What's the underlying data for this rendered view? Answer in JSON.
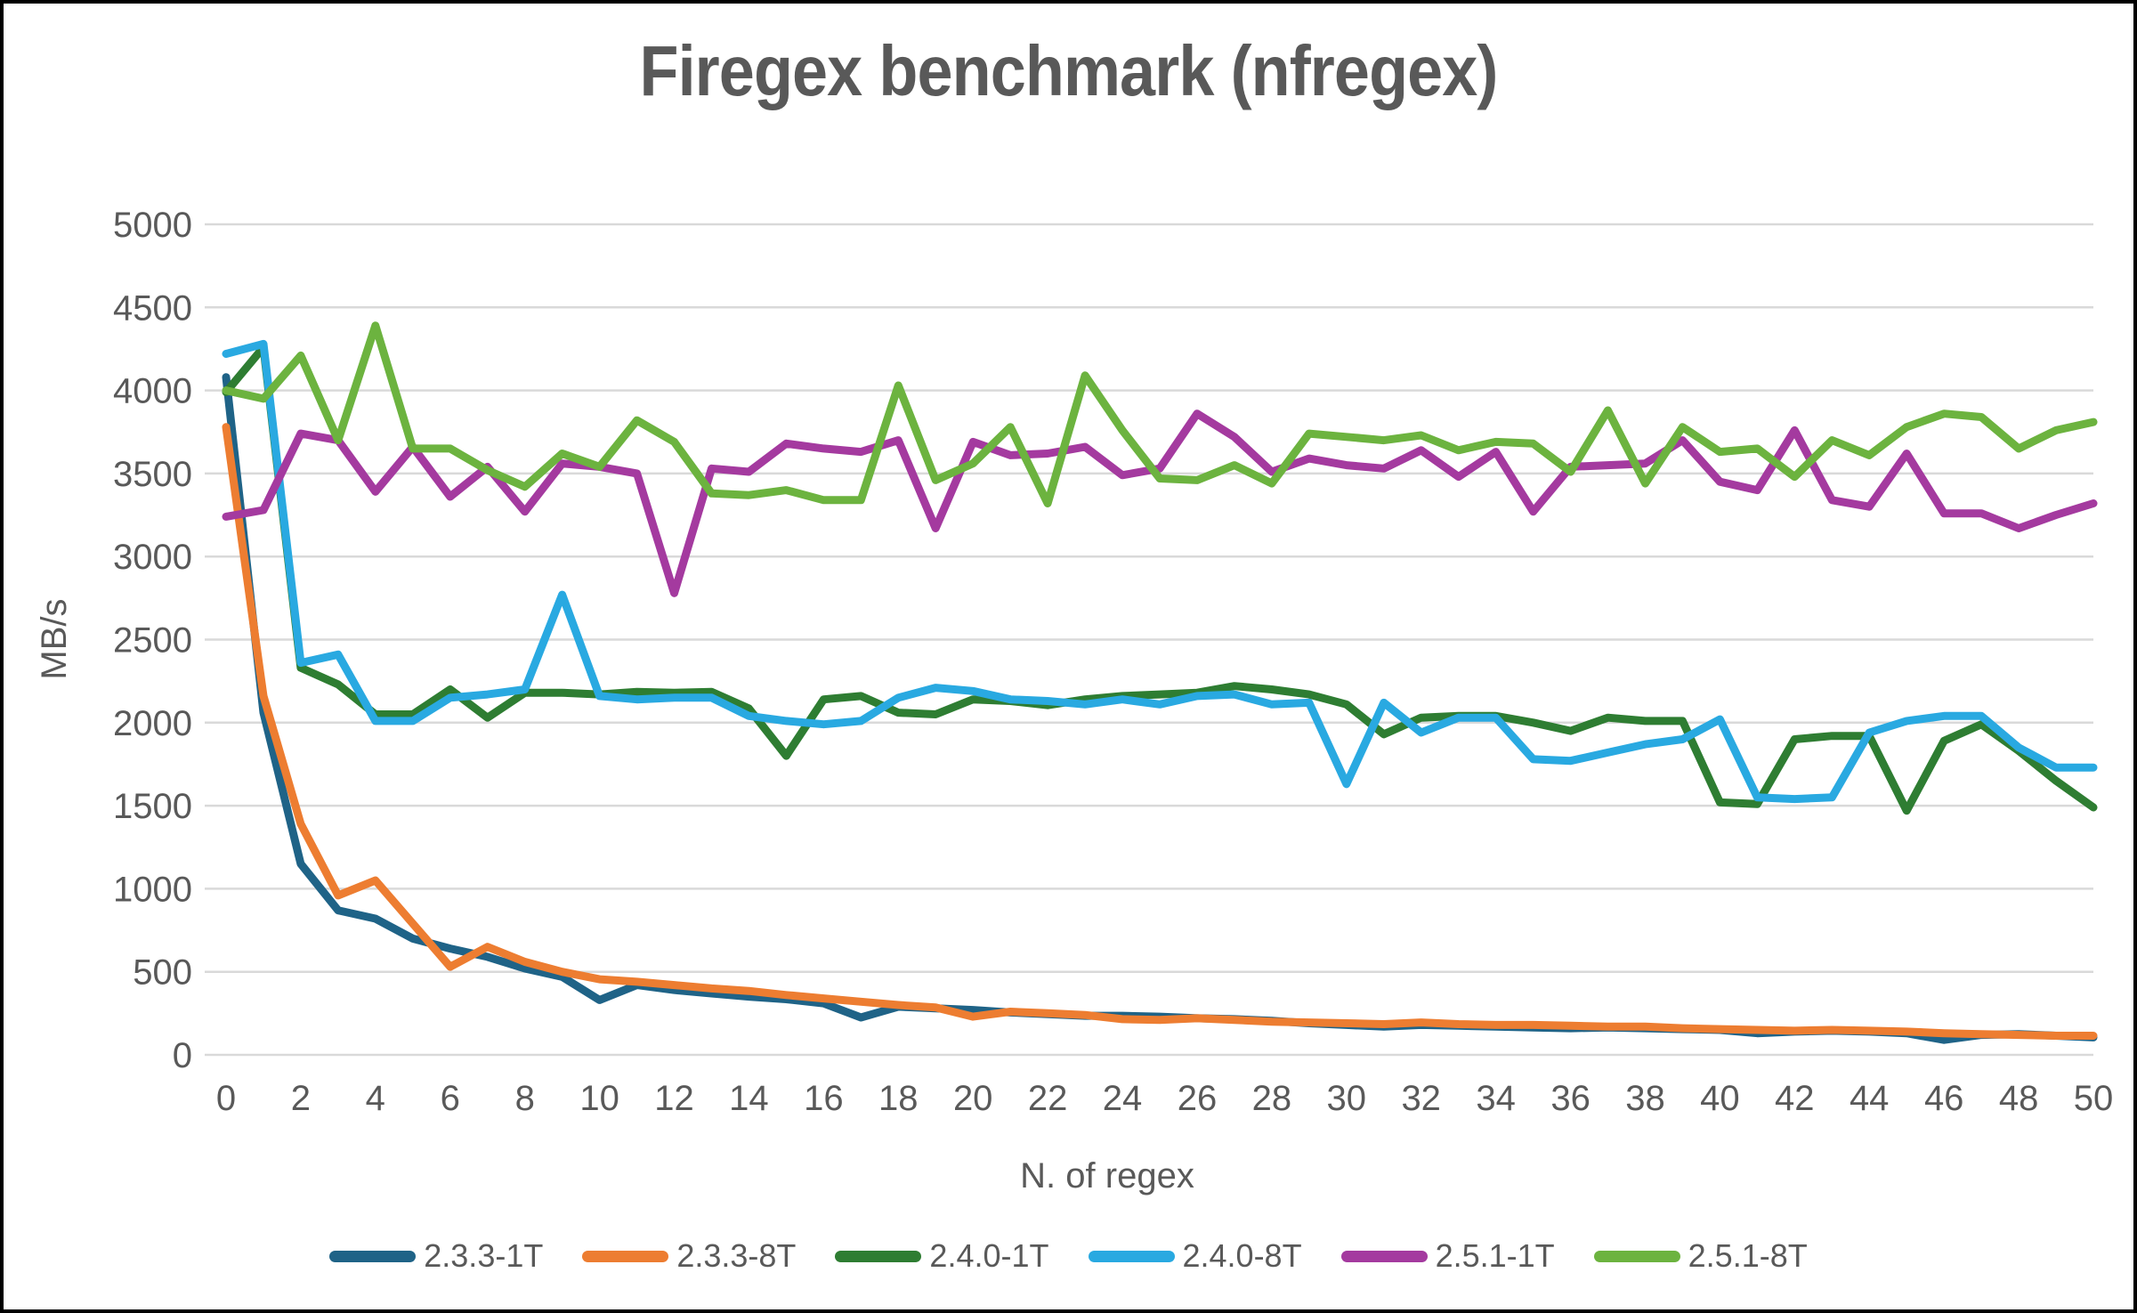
{
  "chart_data": {
    "type": "line",
    "title": "Firegex benchmark (nfregex)",
    "xlabel": "N. of regex",
    "ylabel": "MB/s",
    "xlim": [
      0,
      50
    ],
    "ylim": [
      0,
      5000
    ],
    "x_ticks": [
      0,
      2,
      4,
      6,
      8,
      10,
      12,
      14,
      16,
      18,
      20,
      22,
      24,
      26,
      28,
      30,
      32,
      34,
      36,
      38,
      40,
      42,
      44,
      46,
      48,
      50
    ],
    "y_ticks": [
      0,
      500,
      1000,
      1500,
      2000,
      2500,
      3000,
      3500,
      4000,
      4500,
      5000
    ],
    "grid": true,
    "grid_color": "#d9d9d9",
    "axis_text_color": "#595959",
    "legend_position": "bottom",
    "x": [
      0,
      1,
      2,
      3,
      4,
      5,
      6,
      7,
      8,
      9,
      10,
      11,
      12,
      13,
      14,
      15,
      16,
      17,
      18,
      19,
      20,
      21,
      22,
      23,
      24,
      25,
      26,
      27,
      28,
      29,
      30,
      31,
      32,
      33,
      34,
      35,
      36,
      37,
      38,
      39,
      40,
      41,
      42,
      43,
      44,
      45,
      46,
      47,
      48,
      49,
      50
    ],
    "series": [
      {
        "name": "2.3.3-1T",
        "color": "#1f6387",
        "values": [
          4080,
          2060,
          1150,
          870,
          820,
          700,
          640,
          590,
          520,
          470,
          330,
          420,
          390,
          370,
          350,
          335,
          310,
          225,
          290,
          280,
          270,
          255,
          245,
          235,
          235,
          230,
          220,
          215,
          205,
          190,
          180,
          170,
          180,
          175,
          170,
          165,
          160,
          165,
          160,
          155,
          150,
          130,
          140,
          145,
          140,
          130,
          90,
          120,
          125,
          115,
          105
        ]
      },
      {
        "name": "2.3.3-8T",
        "color": "#ed7d31",
        "values": [
          3780,
          2160,
          1390,
          960,
          1050,
          790,
          530,
          650,
          560,
          500,
          455,
          440,
          420,
          400,
          385,
          360,
          340,
          320,
          300,
          285,
          230,
          260,
          250,
          240,
          215,
          210,
          220,
          210,
          200,
          195,
          190,
          185,
          195,
          185,
          180,
          180,
          175,
          170,
          170,
          160,
          155,
          150,
          145,
          150,
          145,
          140,
          130,
          125,
          120,
          115,
          115
        ]
      },
      {
        "name": "2.4.0-1T",
        "color": "#2e7d32",
        "values": [
          3990,
          4260,
          2330,
          2230,
          2050,
          2050,
          2200,
          2030,
          2180,
          2180,
          2170,
          2185,
          2180,
          2185,
          2085,
          1800,
          2140,
          2160,
          2060,
          2050,
          2140,
          2130,
          2105,
          2140,
          2160,
          2170,
          2180,
          2220,
          2200,
          2170,
          2110,
          1930,
          2030,
          2040,
          2040,
          2000,
          1950,
          2030,
          2010,
          2010,
          1520,
          1510,
          1900,
          1920,
          1920,
          1470,
          1890,
          1990,
          1830,
          1650,
          1490
        ]
      },
      {
        "name": "2.4.0-8T",
        "color": "#29a9e1",
        "values": [
          4220,
          4280,
          2360,
          2410,
          2010,
          2010,
          2150,
          2170,
          2200,
          2770,
          2160,
          2140,
          2150,
          2150,
          2040,
          2010,
          1990,
          2010,
          2150,
          2210,
          2190,
          2140,
          2130,
          2110,
          2140,
          2110,
          2160,
          2170,
          2110,
          2120,
          1630,
          2120,
          1940,
          2030,
          2030,
          1780,
          1770,
          1820,
          1870,
          1900,
          2020,
          1550,
          1540,
          1550,
          1940,
          2010,
          2040,
          2040,
          1850,
          1730,
          1730
        ]
      },
      {
        "name": "2.5.1-1T",
        "color": "#a43a9f",
        "values": [
          3240,
          3280,
          3740,
          3700,
          3390,
          3660,
          3360,
          3540,
          3270,
          3560,
          3540,
          3500,
          2780,
          3530,
          3510,
          3680,
          3650,
          3630,
          3700,
          3170,
          3690,
          3610,
          3620,
          3660,
          3490,
          3530,
          3860,
          3720,
          3510,
          3590,
          3550,
          3530,
          3640,
          3480,
          3630,
          3270,
          3540,
          3550,
          3560,
          3700,
          3450,
          3400,
          3760,
          3340,
          3300,
          3620,
          3260,
          3260,
          3170,
          3250,
          3320
        ]
      },
      {
        "name": "2.5.1-8T",
        "color": "#6cb33f",
        "values": [
          4000,
          3950,
          4210,
          3700,
          4390,
          3650,
          3650,
          3520,
          3420,
          3620,
          3540,
          3820,
          3690,
          3380,
          3370,
          3400,
          3340,
          3340,
          4030,
          3460,
          3560,
          3780,
          3320,
          4090,
          3760,
          3470,
          3460,
          3550,
          3440,
          3740,
          3720,
          3700,
          3730,
          3640,
          3690,
          3680,
          3510,
          3880,
          3440,
          3780,
          3630,
          3650,
          3480,
          3700,
          3610,
          3780,
          3860,
          3840,
          3650,
          3760,
          3810
        ]
      }
    ]
  }
}
